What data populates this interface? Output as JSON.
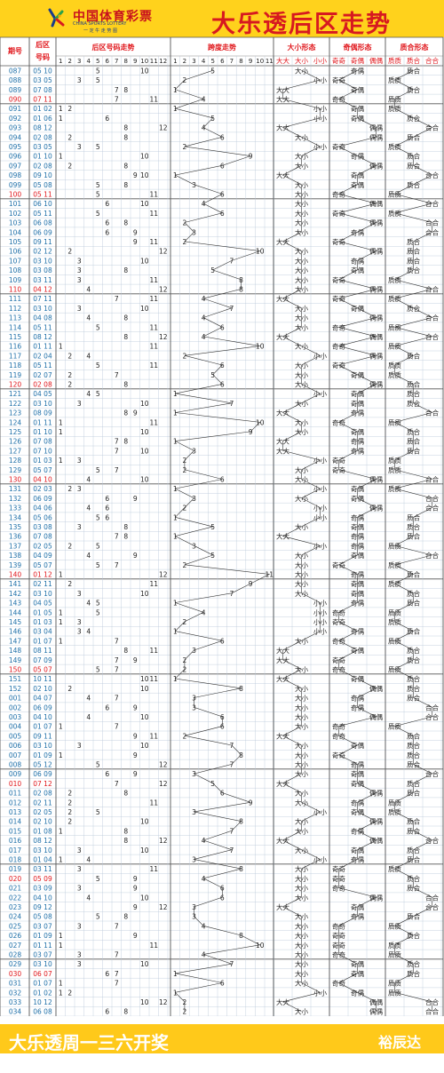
{
  "header": {
    "brand_main": "中国体育彩票",
    "brand_en": "CHINA SPORTS LOTTERY",
    "brand_slogan": "一 定 牛 走 势 图",
    "title": "大乐透后区走势"
  },
  "footer": {
    "left": "大乐透周一三六开奖",
    "right": "裕辰达"
  },
  "colors": {
    "header_bg": "#ffd21c",
    "title_red": "#d71920",
    "issue_blue": "#1e6fa8",
    "highlight_red": "#e0161b",
    "grid": "#b8c6d8"
  },
  "chart_data": {
    "type": "table",
    "columns": {
      "issue": "期号",
      "back": "后区号码",
      "dist": "后区号码走势",
      "span": "跨度走势",
      "size": "大小形态",
      "parity": "奇偶形态",
      "prime": "质合形态"
    },
    "dist_ticks": [
      "1",
      "2",
      "3",
      "4",
      "5",
      "6",
      "7",
      "8",
      "9",
      "10",
      "11",
      "12"
    ],
    "span_ticks": [
      "1",
      "2",
      "3",
      "4",
      "5",
      "6",
      "7",
      "8",
      "9",
      "10",
      "11"
    ],
    "pattern_labels": {
      "size": [
        "大大",
        "大小",
        "小小"
      ],
      "parity": [
        "奇奇",
        "奇偶",
        "偶偶"
      ],
      "prime": [
        "质质",
        "质合",
        "合合"
      ]
    },
    "rows": [
      {
        "issue": "087",
        "nums": "05 10"
      },
      {
        "issue": "088",
        "nums": "03 05"
      },
      {
        "issue": "089",
        "nums": "07 08"
      },
      {
        "issue": "090",
        "nums": "07 11"
      },
      {
        "issue": "091",
        "nums": "01 02"
      },
      {
        "issue": "092",
        "nums": "01 06"
      },
      {
        "issue": "093",
        "nums": "08 12"
      },
      {
        "issue": "094",
        "nums": "02 08"
      },
      {
        "issue": "095",
        "nums": "03 05"
      },
      {
        "issue": "096",
        "nums": "01 10"
      },
      {
        "issue": "097",
        "nums": "02 08"
      },
      {
        "issue": "098",
        "nums": "09 10"
      },
      {
        "issue": "099",
        "nums": "05 08"
      },
      {
        "issue": "100",
        "nums": "05 11"
      },
      {
        "issue": "101",
        "nums": "06 10"
      },
      {
        "issue": "102",
        "nums": "05 11"
      },
      {
        "issue": "103",
        "nums": "06 08"
      },
      {
        "issue": "104",
        "nums": "06 09"
      },
      {
        "issue": "105",
        "nums": "09 11"
      },
      {
        "issue": "106",
        "nums": "02 12"
      },
      {
        "issue": "107",
        "nums": "03 10"
      },
      {
        "issue": "108",
        "nums": "03 08"
      },
      {
        "issue": "109",
        "nums": "03 11"
      },
      {
        "issue": "110",
        "nums": "04 12"
      },
      {
        "issue": "111",
        "nums": "07 11"
      },
      {
        "issue": "112",
        "nums": "03 10"
      },
      {
        "issue": "113",
        "nums": "04 08"
      },
      {
        "issue": "114",
        "nums": "05 11"
      },
      {
        "issue": "115",
        "nums": "08 12"
      },
      {
        "issue": "116",
        "nums": "01 11"
      },
      {
        "issue": "117",
        "nums": "02 04"
      },
      {
        "issue": "118",
        "nums": "05 11"
      },
      {
        "issue": "119",
        "nums": "02 07"
      },
      {
        "issue": "120",
        "nums": "02 08"
      },
      {
        "issue": "121",
        "nums": "04 05"
      },
      {
        "issue": "122",
        "nums": "03 10"
      },
      {
        "issue": "123",
        "nums": "08 09"
      },
      {
        "issue": "124",
        "nums": "01 11"
      },
      {
        "issue": "125",
        "nums": "01 10"
      },
      {
        "issue": "126",
        "nums": "07 08"
      },
      {
        "issue": "127",
        "nums": "07 10"
      },
      {
        "issue": "128",
        "nums": "01 03"
      },
      {
        "issue": "129",
        "nums": "05 07"
      },
      {
        "issue": "130",
        "nums": "04 10"
      },
      {
        "issue": "131",
        "nums": "02 03"
      },
      {
        "issue": "132",
        "nums": "06 09"
      },
      {
        "issue": "133",
        "nums": "04 06"
      },
      {
        "issue": "134",
        "nums": "05 06"
      },
      {
        "issue": "135",
        "nums": "03 08"
      },
      {
        "issue": "136",
        "nums": "07 08"
      },
      {
        "issue": "137",
        "nums": "02 05"
      },
      {
        "issue": "138",
        "nums": "04 09"
      },
      {
        "issue": "139",
        "nums": "05 07"
      },
      {
        "issue": "140",
        "nums": "01 12"
      },
      {
        "issue": "141",
        "nums": "02 11"
      },
      {
        "issue": "142",
        "nums": "03 10"
      },
      {
        "issue": "143",
        "nums": "04 05"
      },
      {
        "issue": "144",
        "nums": "01 05"
      },
      {
        "issue": "145",
        "nums": "01 03"
      },
      {
        "issue": "146",
        "nums": "03 04"
      },
      {
        "issue": "147",
        "nums": "01 07"
      },
      {
        "issue": "148",
        "nums": "08 11"
      },
      {
        "issue": "149",
        "nums": "07 09"
      },
      {
        "issue": "150",
        "nums": "05 07"
      },
      {
        "issue": "151",
        "nums": "10 11"
      },
      {
        "issue": "152",
        "nums": "02 10"
      },
      {
        "issue": "001",
        "nums": "04 07"
      },
      {
        "issue": "002",
        "nums": "06 09"
      },
      {
        "issue": "003",
        "nums": "04 10"
      },
      {
        "issue": "004",
        "nums": "01 07"
      },
      {
        "issue": "005",
        "nums": "09 11"
      },
      {
        "issue": "006",
        "nums": "03 10"
      },
      {
        "issue": "007",
        "nums": "01 09"
      },
      {
        "issue": "008",
        "nums": "05 12"
      },
      {
        "issue": "009",
        "nums": "06 09"
      },
      {
        "issue": "010",
        "nums": "07 12"
      },
      {
        "issue": "011",
        "nums": "02 08"
      },
      {
        "issue": "012",
        "nums": "02 11"
      },
      {
        "issue": "013",
        "nums": "02 05"
      },
      {
        "issue": "014",
        "nums": "02 10"
      },
      {
        "issue": "015",
        "nums": "01 08"
      },
      {
        "issue": "016",
        "nums": "08 12"
      },
      {
        "issue": "017",
        "nums": "03 10"
      },
      {
        "issue": "018",
        "nums": "01 04"
      },
      {
        "issue": "019",
        "nums": "03 11"
      },
      {
        "issue": "020",
        "nums": "05 09"
      },
      {
        "issue": "021",
        "nums": "03 09"
      },
      {
        "issue": "022",
        "nums": "04 10"
      },
      {
        "issue": "023",
        "nums": "09 12"
      },
      {
        "issue": "024",
        "nums": "05 08"
      },
      {
        "issue": "025",
        "nums": "03 07"
      },
      {
        "issue": "026",
        "nums": "01 09"
      },
      {
        "issue": "027",
        "nums": "01 11"
      },
      {
        "issue": "028",
        "nums": "03 07"
      },
      {
        "issue": "029",
        "nums": "03 10"
      },
      {
        "issue": "030",
        "nums": "06 07"
      },
      {
        "issue": "031",
        "nums": "01 07"
      },
      {
        "issue": "032",
        "nums": "01 02"
      },
      {
        "issue": "033",
        "nums": "10 12"
      },
      {
        "issue": "034",
        "nums": "06 08"
      }
    ]
  }
}
